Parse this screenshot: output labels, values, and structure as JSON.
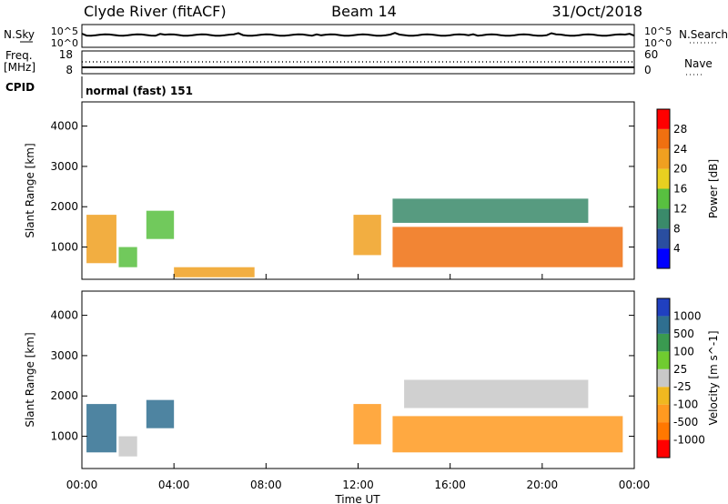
{
  "header": {
    "station": "Clyde River (fitACF)",
    "beam": "Beam 14",
    "date": "31/Oct/2018"
  },
  "noise_panel": {
    "left_label": "N.Sky",
    "right_label": "N.Search",
    "left_ticks": [
      "10^5",
      "10^0"
    ],
    "right_ticks": [
      "10^5",
      "10^0"
    ]
  },
  "freq_panel": {
    "left_label_line1": "Freq.",
    "left_label_line2": "[MHz]",
    "left_ticks": [
      "18",
      "8"
    ],
    "right_label": "Nave",
    "right_ticks": [
      "60",
      "0"
    ]
  },
  "cpid": {
    "label": "CPID",
    "value": "normal (fast) 151"
  },
  "time_axis": {
    "label": "Time UT",
    "ticks": [
      "00:00",
      "04:00",
      "08:00",
      "12:00",
      "16:00",
      "20:00",
      "00:00"
    ]
  },
  "colors": {
    "frame": "#000000",
    "power": [
      "#0000ff",
      "#2a4ea0",
      "#3a8a6a",
      "#58c040",
      "#e8d020",
      "#f0a020",
      "#f07010",
      "#ff0000"
    ],
    "velocity": [
      "#ff0000",
      "#ff7800",
      "#ff9a20",
      "#f0b820",
      "#c8c8c8",
      "#70cc30",
      "#3a9a50",
      "#2f6f90",
      "#2040c0"
    ]
  },
  "chart_data": [
    {
      "type": "heatmap",
      "title": "",
      "ylabel": "Slant Range [km]",
      "xlabel": "",
      "y_ticks": [
        "1000",
        "2000",
        "3000",
        "4000"
      ],
      "ylim": [
        200,
        4600
      ],
      "colorbar": {
        "label": "Power [dB]",
        "ticks": [
          "4",
          "8",
          "12",
          "16",
          "20",
          "24",
          "28"
        ],
        "range": [
          0,
          32
        ]
      },
      "echo_regions": [
        {
          "t_start": 0.2,
          "t_end": 1.5,
          "r_min": 600,
          "r_max": 1800,
          "value": 24
        },
        {
          "t_start": 1.6,
          "t_end": 2.4,
          "r_min": 500,
          "r_max": 1000,
          "value": 16
        },
        {
          "t_start": 2.8,
          "t_end": 4.0,
          "r_min": 1200,
          "r_max": 1900,
          "value": 16
        },
        {
          "t_start": 4.0,
          "t_end": 7.5,
          "r_min": 250,
          "r_max": 500,
          "value": 24
        },
        {
          "t_start": 11.8,
          "t_end": 13.0,
          "r_min": 800,
          "r_max": 1800,
          "value": 24
        },
        {
          "t_start": 13.5,
          "t_end": 23.5,
          "r_min": 500,
          "r_max": 1500,
          "value": 28
        },
        {
          "t_start": 13.5,
          "t_end": 22.0,
          "r_min": 1600,
          "r_max": 2200,
          "value": 12
        }
      ]
    },
    {
      "type": "heatmap",
      "title": "",
      "ylabel": "Slant Range [km]",
      "xlabel": "Time UT",
      "y_ticks": [
        "1000",
        "2000",
        "3000",
        "4000"
      ],
      "ylim": [
        200,
        4600
      ],
      "colorbar": {
        "label": "Velocity [m s^-1]",
        "ticks": [
          "-1000",
          "-500",
          "-100",
          "-25",
          "25",
          "100",
          "500",
          "1000"
        ]
      },
      "echo_regions": [
        {
          "t_start": 0.2,
          "t_end": 1.5,
          "r_min": 600,
          "r_max": 1800,
          "value": 500
        },
        {
          "t_start": 2.8,
          "t_end": 4.0,
          "r_min": 1200,
          "r_max": 1900,
          "value": 500
        },
        {
          "t_start": 1.6,
          "t_end": 2.4,
          "r_min": 500,
          "r_max": 1000,
          "value": 0
        },
        {
          "t_start": 11.8,
          "t_end": 13.0,
          "r_min": 800,
          "r_max": 1800,
          "value": -100
        },
        {
          "t_start": 13.5,
          "t_end": 23.5,
          "r_min": 600,
          "r_max": 1500,
          "value": -100
        },
        {
          "t_start": 14.0,
          "t_end": 22.0,
          "r_min": 1700,
          "r_max": 2400,
          "value": 0
        }
      ]
    }
  ]
}
